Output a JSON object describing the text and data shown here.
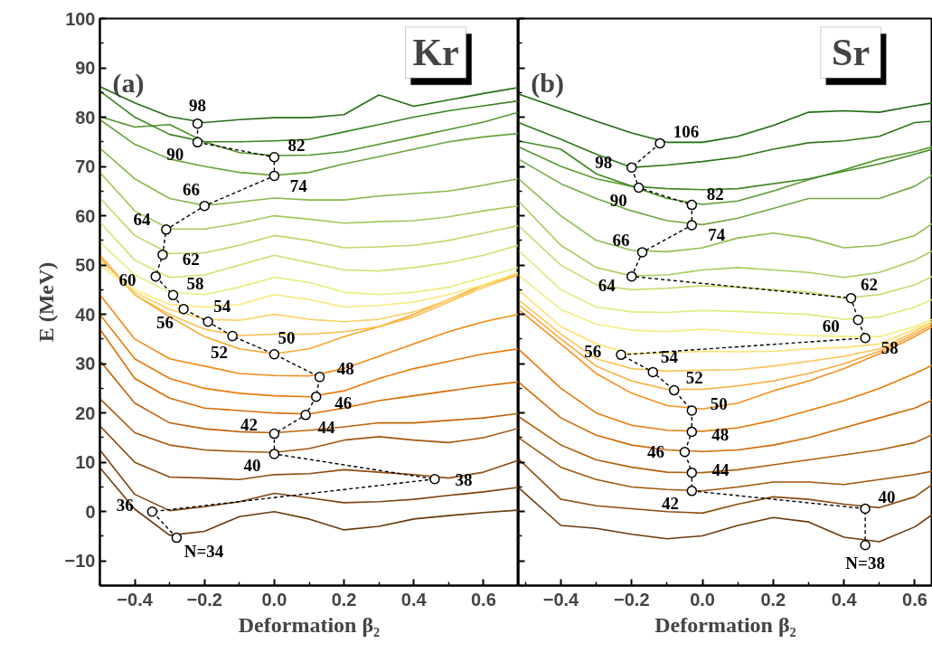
{
  "chart_data": [
    {
      "type": "line",
      "xlabel": "Deformation β₂",
      "ylabel": "E (MeV)",
      "x": [
        -0.5,
        -0.4,
        -0.3,
        -0.2,
        -0.1,
        0,
        0.1,
        0.2,
        0.3,
        0.4,
        0.5,
        0.6,
        0.7
      ],
      "xlim": [
        -0.5,
        0.7
      ],
      "ylim": [
        -15,
        100
      ],
      "xticks": [
        -0.4,
        -0.2,
        {
          "value": 0,
          "label": "0.0"
        },
        0.2,
        0.4,
        0.6
      ],
      "yticks": [
        -10,
        0,
        10,
        20,
        30,
        40,
        50,
        60,
        70,
        80,
        90,
        100
      ],
      "series": [
        {
          "color": "#6b3a0a",
          "values": [
            8.9,
            0.5,
            -4.8,
            -4,
            -1,
            0,
            -1.5,
            -3.7,
            -3,
            -1.5,
            -0.8,
            -0.2,
            0.3
          ]
        },
        {
          "color": "#7d4310",
          "values": [
            12.5,
            3.5,
            0.2,
            1,
            2,
            3.7,
            2.8,
            1.8,
            2,
            2.5,
            3.3,
            4,
            4.9
          ]
        },
        {
          "color": "#8f4c0e",
          "values": [
            17.4,
            10,
            7,
            6.8,
            6.5,
            7.5,
            7.7,
            8.5,
            8,
            7.5,
            6.8,
            8,
            10.4
          ]
        },
        {
          "color": "#a5560c",
          "values": [
            22.9,
            16,
            13.5,
            12.5,
            12.2,
            12,
            12.8,
            14.5,
            15.2,
            14.5,
            14,
            15,
            16.9
          ]
        },
        {
          "color": "#c2620a",
          "values": [
            30.6,
            22,
            18,
            16.8,
            16.2,
            16,
            16.5,
            17.2,
            18,
            18,
            18.5,
            19,
            19.9
          ]
        },
        {
          "color": "#d86d07",
          "values": [
            37,
            27,
            23,
            21,
            20.5,
            20,
            19.8,
            21,
            22.5,
            23.5,
            24.5,
            25.5,
            26.3
          ]
        },
        {
          "color": "#e87a08",
          "values": [
            40,
            31,
            27,
            25,
            24,
            23.5,
            23.3,
            24.5,
            27,
            29,
            30.5,
            32,
            33
          ]
        },
        {
          "color": "#f28a12",
          "values": [
            44,
            35,
            31,
            29.5,
            28,
            27.6,
            27.5,
            29,
            31.5,
            34,
            36.5,
            38.5,
            40
          ]
        },
        {
          "color": "#f7a530",
          "values": [
            52,
            44,
            39.5,
            35.5,
            33,
            32,
            33,
            35.5,
            37.5,
            40,
            43,
            46,
            48
          ]
        },
        {
          "color": "#fbbd4a",
          "values": [
            51.5,
            44,
            40,
            37,
            35.7,
            36,
            36,
            36.5,
            37.5,
            39.5,
            42.5,
            45.5,
            48
          ]
        },
        {
          "color": "#fcd068",
          "values": [
            51,
            44.5,
            41,
            39,
            38.8,
            40,
            39,
            38.5,
            39,
            40.5,
            43,
            45.5,
            48.5
          ]
        },
        {
          "color": "#fde87a",
          "values": [
            49.8,
            45,
            42,
            41.5,
            42,
            44,
            43,
            41.5,
            41.8,
            42.5,
            44,
            46,
            48.5
          ]
        },
        {
          "color": "#e8ee7a",
          "values": [
            54.7,
            48,
            44.5,
            44,
            45.5,
            47.5,
            46.5,
            44.5,
            44,
            44.5,
            45.5,
            47.5,
            49.5
          ]
        },
        {
          "color": "#d0e274",
          "values": [
            58.7,
            51,
            47.5,
            48,
            50,
            52,
            50.5,
            49,
            48.8,
            49.5,
            50.5,
            52,
            54
          ]
        },
        {
          "color": "#bcd86a",
          "values": [
            63.6,
            56,
            52.3,
            52.5,
            54,
            56,
            55,
            53.5,
            53.7,
            54,
            55,
            56.5,
            58
          ]
        },
        {
          "color": "#a3c95a",
          "values": [
            68.8,
            61,
            57.3,
            57.3,
            58.5,
            60,
            59.3,
            58.5,
            58.8,
            59,
            59.8,
            61,
            62
          ]
        },
        {
          "color": "#8ab84c",
          "values": [
            73.7,
            67.5,
            63.5,
            62.1,
            62.8,
            63.6,
            63.2,
            63.2,
            64,
            64.5,
            65,
            66.2,
            67.5
          ]
        },
        {
          "color": "#6aa43a",
          "values": [
            79.5,
            74.5,
            71.5,
            70,
            68.8,
            68.2,
            68.8,
            70.5,
            72,
            73.5,
            75,
            76,
            76.7
          ]
        },
        {
          "color": "#4f942a",
          "values": [
            80.1,
            78,
            78.5,
            75,
            72.8,
            72.2,
            72.3,
            73,
            74.5,
            76,
            77.5,
            79,
            81
          ]
        },
        {
          "color": "#3a8420",
          "values": [
            85.3,
            80,
            76.5,
            75,
            75,
            75.2,
            75.5,
            77,
            78.5,
            80,
            81.3,
            82.3,
            83.3
          ]
        },
        {
          "color": "#246f14",
          "values": [
            86.2,
            82.9,
            80.1,
            78.9,
            79.5,
            79.9,
            79.9,
            80.5,
            84.5,
            82.2,
            83.5,
            84.8,
            86
          ]
        },
        {
          "type": "line",
          "color": "#000000",
          "marker": "circle",
          "line_style": "dashed",
          "x": [
            -0.22,
            -0.22,
            0,
            0,
            -0.2,
            -0.31,
            -0.32,
            -0.34,
            -0.29,
            -0.26,
            -0.19,
            -0.12,
            0,
            0.13,
            0.12,
            0.09,
            0,
            0,
            0.46,
            -0.35,
            -0.28
          ],
          "values": [
            78.7,
            74.9,
            71.9,
            68.1,
            62,
            57.2,
            52.1,
            47.7,
            43.9,
            41.1,
            38.5,
            35.6,
            31.9,
            27.3,
            23.3,
            19.6,
            15.8,
            11.7,
            6.6,
            0,
            -5.3
          ]
        }
      ],
      "annotations": [
        "(a)",
        "Kr",
        {
          "text": "98",
          "x": -0.22,
          "y": 78.7
        },
        {
          "text": "90",
          "x": -0.22,
          "y": 74.9
        },
        {
          "text": "82",
          "x": 0,
          "y": 71.9
        },
        {
          "text": "74",
          "x": 0,
          "y": 68.1
        },
        {
          "text": "66",
          "x": -0.2,
          "y": 62
        },
        {
          "text": "64",
          "x": -0.31,
          "y": 57.2
        },
        {
          "text": "62",
          "x": -0.32,
          "y": 52.1
        },
        {
          "text": "60",
          "x": -0.34,
          "y": 47.7
        },
        {
          "text": "58",
          "x": -0.29,
          "y": 43.9
        },
        {
          "text": "56",
          "x": -0.26,
          "y": 41.1
        },
        {
          "text": "54",
          "x": -0.19,
          "y": 38.5
        },
        {
          "text": "52",
          "x": -0.12,
          "y": 35.6
        },
        {
          "text": "50",
          "x": 0,
          "y": 31.9
        },
        {
          "text": "48",
          "x": 0.13,
          "y": 27.3
        },
        {
          "text": "46",
          "x": 0.12,
          "y": 23.3
        },
        {
          "text": "44",
          "x": 0.09,
          "y": 19.6
        },
        {
          "text": "42",
          "x": 0,
          "y": 15.8
        },
        {
          "text": "40",
          "x": 0,
          "y": 11.7
        },
        {
          "text": "38",
          "x": 0.46,
          "y": 6.6
        },
        {
          "text": "36",
          "x": -0.35,
          "y": 0
        },
        {
          "text": "N=34",
          "x": -0.28,
          "y": -5.3
        }
      ]
    },
    {
      "type": "line",
      "xlabel": "Deformation β₂",
      "x": [
        -0.52,
        -0.4,
        -0.3,
        -0.2,
        -0.1,
        0,
        0.1,
        0.2,
        0.3,
        0.4,
        0.5,
        0.6,
        0.65
      ],
      "xlim": [
        -0.52,
        0.65
      ],
      "ylim": [
        -15,
        100
      ],
      "xticks": [
        -0.4,
        -0.2,
        {
          "value": 0,
          "label": "0.0"
        },
        0.2,
        0.4,
        0.6
      ],
      "yticks": [
        -10,
        0,
        10,
        20,
        30,
        40,
        50,
        60,
        70,
        80,
        90,
        100
      ],
      "tick_labels": "x",
      "series": [
        {
          "color": "#6b3a0a",
          "values": [
            4.9,
            -2.8,
            -3.4,
            -4.6,
            -5.5,
            -4.9,
            -2.8,
            -1.2,
            -2.1,
            -5.2,
            -6.1,
            -3.1,
            -0.6
          ]
        },
        {
          "color": "#8a4a10",
          "values": [
            10.7,
            2.5,
            1.2,
            0.6,
            0,
            -0.3,
            1.5,
            3,
            2.5,
            1.5,
            0.8,
            3,
            5.5
          ]
        },
        {
          "color": "#a0560c",
          "values": [
            15,
            9,
            6.5,
            5,
            4.5,
            4.2,
            5,
            6,
            6,
            5.5,
            6.5,
            7.5,
            8.2
          ]
        },
        {
          "color": "#b35f0a",
          "values": [
            19.3,
            13.5,
            10.5,
            9,
            8,
            7.9,
            8.5,
            9.5,
            10.5,
            11.5,
            12.5,
            14,
            15.6
          ]
        },
        {
          "color": "#d06a06",
          "values": [
            26.3,
            19,
            15.5,
            13.5,
            12.5,
            12.2,
            12.5,
            13.5,
            15,
            17,
            19,
            21,
            22.6
          ]
        },
        {
          "color": "#e87a08",
          "values": [
            33,
            25,
            20,
            17.5,
            16.5,
            16.3,
            17,
            18.5,
            20.5,
            22.5,
            25,
            28,
            29.7
          ]
        },
        {
          "color": "#f49020",
          "values": [
            41,
            34,
            28,
            24,
            21.5,
            20.8,
            22,
            24.5,
            26.5,
            29,
            32,
            35.5,
            37.5
          ]
        },
        {
          "color": "#f9aa3a",
          "values": [
            42,
            35,
            29.5,
            26.5,
            24.8,
            24.8,
            25.5,
            26.5,
            28,
            30,
            32.5,
            36,
            38
          ]
        },
        {
          "color": "#fcc458",
          "values": [
            43,
            36,
            31,
            29,
            28.5,
            28.7,
            28.8,
            29.5,
            30.5,
            31.5,
            33,
            36.5,
            38.5
          ]
        },
        {
          "color": "#fde070",
          "values": [
            45,
            37.5,
            34,
            32,
            32.2,
            32.5,
            32.4,
            32.5,
            33,
            33.3,
            34,
            37,
            38.5
          ]
        },
        {
          "color": "#f4ee7c",
          "values": [
            48,
            41,
            38,
            36.8,
            36.5,
            37,
            36.5,
            36,
            35.7,
            35.5,
            35.5,
            37.5,
            39
          ]
        },
        {
          "color": "#e0ea7a",
          "values": [
            53,
            45,
            41.5,
            40.5,
            40.4,
            40.8,
            40.6,
            40.3,
            40,
            39,
            39.5,
            41.5,
            43
          ]
        },
        {
          "color": "#c5dc6c",
          "values": [
            58,
            50,
            46,
            45,
            45.3,
            45.8,
            45.5,
            45,
            44.5,
            43.3,
            44,
            46,
            47.7
          ]
        },
        {
          "color": "#aacc5e",
          "values": [
            63,
            54,
            49.5,
            47.8,
            48,
            49,
            49.5,
            49,
            48.5,
            47.5,
            48.5,
            51,
            52.9
          ]
        },
        {
          "color": "#8fbc50",
          "values": [
            67.5,
            60,
            55,
            53,
            52.7,
            53.5,
            55.5,
            56.5,
            55.5,
            53.5,
            54,
            56,
            58.4
          ]
        },
        {
          "color": "#72a840",
          "values": [
            71.5,
            66.5,
            63.5,
            61,
            59,
            58.2,
            59.5,
            61.5,
            63.5,
            63.5,
            63.5,
            66,
            68.2
          ]
        },
        {
          "color": "#589a30",
          "values": [
            74,
            70,
            67.5,
            66,
            63.5,
            62.3,
            63,
            65,
            67.3,
            69.3,
            71.5,
            73,
            74
          ]
        },
        {
          "color": "#428a24",
          "values": [
            75.2,
            73.5,
            68.5,
            66,
            65.5,
            65.3,
            65.5,
            66.5,
            67.5,
            69,
            70.5,
            72.5,
            73.5
          ]
        },
        {
          "color": "#2c7818",
          "values": [
            78.9,
            75.5,
            72.5,
            69.8,
            70.3,
            71,
            71.9,
            73.5,
            74.8,
            75.2,
            76.1,
            78.9,
            79.2
          ]
        },
        {
          "color": "#1c6a10",
          "values": [
            84.7,
            81.7,
            79.2,
            76.8,
            74.9,
            74.9,
            76.1,
            78.3,
            81,
            81.3,
            81,
            82.3,
            82.9
          ]
        },
        {
          "type": "line",
          "color": "#000000",
          "marker": "circle",
          "line_style": "dashed",
          "x": [
            -0.12,
            -0.2,
            -0.18,
            -0.03,
            -0.03,
            -0.17,
            -0.2,
            0.42,
            0.44,
            0.46,
            -0.23,
            -0.14,
            -0.08,
            -0.03,
            -0.03,
            -0.05,
            -0.03,
            -0.03,
            0.46,
            0.46
          ],
          "values": [
            74.7,
            69.8,
            65.7,
            62.2,
            58.1,
            52.6,
            47.7,
            43.3,
            38.9,
            35.2,
            31.8,
            28.3,
            24.6,
            20.5,
            16.2,
            12.1,
            7.9,
            4.2,
            0.6,
            -6.8
          ]
        }
      ],
      "annotations": [
        "(b)",
        "Sr",
        {
          "text": "106",
          "x": -0.12,
          "y": 74.7
        },
        {
          "text": "98",
          "x": -0.2,
          "y": 69.8
        },
        {
          "text": "90",
          "x": -0.18,
          "y": 65.7
        },
        {
          "text": "82",
          "x": -0.03,
          "y": 62.2
        },
        {
          "text": "74",
          "x": -0.03,
          "y": 58.1
        },
        {
          "text": "66",
          "x": -0.17,
          "y": 52.6
        },
        {
          "text": "64",
          "x": -0.2,
          "y": 47.7
        },
        {
          "text": "62",
          "x": 0.42,
          "y": 43.3
        },
        {
          "text": "60",
          "x": 0.44,
          "y": 38.9
        },
        {
          "text": "58",
          "x": 0.46,
          "y": 35.2
        },
        {
          "text": "56",
          "x": -0.23,
          "y": 31.8
        },
        {
          "text": "54",
          "x": -0.14,
          "y": 28.3
        },
        {
          "text": "52",
          "x": -0.08,
          "y": 24.6
        },
        {
          "text": "50",
          "x": -0.03,
          "y": 20.5
        },
        {
          "text": "48",
          "x": -0.03,
          "y": 16.2
        },
        {
          "text": "46",
          "x": -0.05,
          "y": 12.1
        },
        {
          "text": "44",
          "x": -0.03,
          "y": 7.9
        },
        {
          "text": "42",
          "x": -0.03,
          "y": 4.2
        },
        {
          "text": "40",
          "x": 0.46,
          "y": 0.6
        },
        {
          "text": "N=38",
          "x": 0.46,
          "y": -6.8
        }
      ]
    }
  ]
}
